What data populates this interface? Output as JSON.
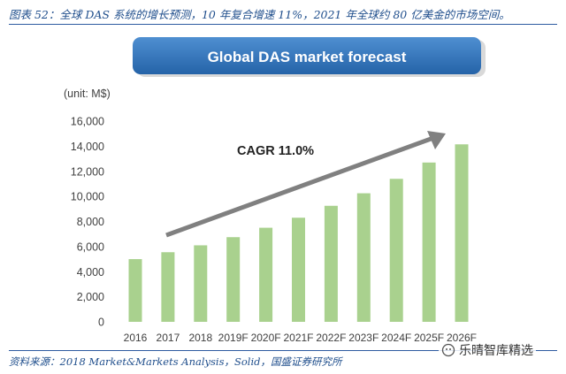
{
  "figure": {
    "caption": "图表 52：全球 DAS 系统的增长预测，10 年复合增速 11%，2021 年全球约 80 亿美金的市场空间。",
    "source": "资料来源：2018 Market&Markets Analysis，Solid，国盛证券研究所",
    "watermark": "乐晴智库精选"
  },
  "chart_data": {
    "type": "bar",
    "title": "Global DAS market forecast",
    "unit_label": "(unit: M$)",
    "categories": [
      "2016",
      "2017",
      "2018",
      "2019F",
      "2020F",
      "2021F",
      "2022F",
      "2023F",
      "2024F",
      "2025F",
      "2026F"
    ],
    "values": [
      5000,
      5550,
      6100,
      6750,
      7500,
      8300,
      9250,
      10250,
      11400,
      12700,
      14150
    ],
    "ylim": [
      0,
      16000
    ],
    "yticks": [
      "0",
      "2,000",
      "4,000",
      "6,000",
      "8,000",
      "10,000",
      "12,000",
      "14,000",
      "16,000"
    ],
    "annotation": "CAGR 11.0%",
    "grid": false,
    "colors": {
      "bar": "#a9d18e",
      "arrow": "#7f7f7f",
      "title_bg": "#2e75b6",
      "caption": "#1f4e8c"
    }
  }
}
